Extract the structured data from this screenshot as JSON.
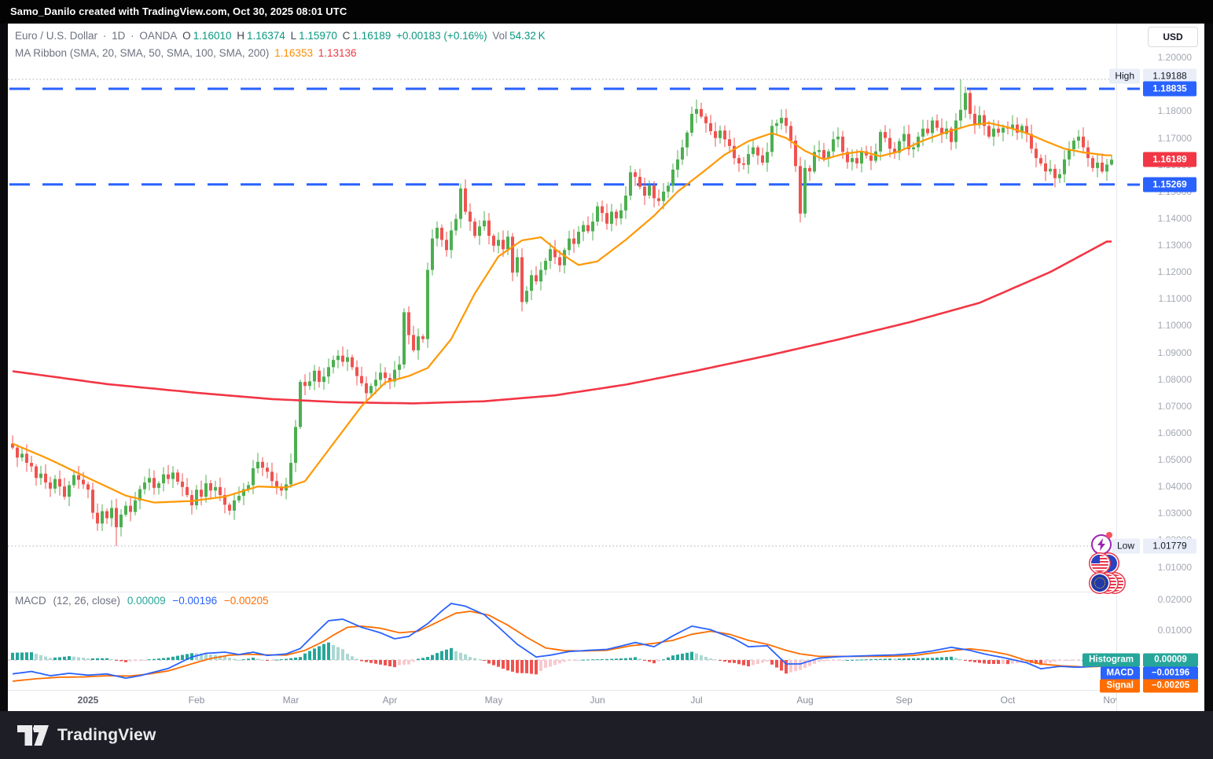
{
  "frame": {
    "top_bar_text": "Samo_Danilo created with TradingView.com, Oct 30, 2025 08:01 UTC",
    "footer_logo_text": "TradingView"
  },
  "header": {
    "symbol": "Euro / U.S. Dollar",
    "sep": "·",
    "interval": "1D",
    "exchange": "OANDA",
    "o_label": "O",
    "o_value": "1.16010",
    "h_label": "H",
    "h_value": "1.16374",
    "l_label": "L",
    "l_value": "1.15970",
    "c_label": "C",
    "c_value": "1.16189",
    "change": "+0.00183 (+0.16%)",
    "vol_label": "Vol",
    "vol_value": "54.32 K",
    "ma_ribbon_label": "MA Ribbon (SMA, 20, SMA, 50, SMA, 100, SMA, 200)",
    "sma20_value": "1.16353",
    "sma200_value": "1.13136"
  },
  "macd_header": {
    "label": "MACD",
    "params": "(12, 26, close)",
    "histogram_value": "0.00009",
    "macd_value": "−0.00196",
    "signal_value": "−0.00205"
  },
  "price_axis": {
    "currency_button": "USD",
    "ticks": [
      1.2,
      1.18,
      1.17,
      1.16,
      1.15,
      1.14,
      1.13,
      1.12,
      1.11,
      1.1,
      1.09,
      1.08,
      1.07,
      1.06,
      1.05,
      1.04,
      1.03,
      1.02,
      1.01
    ],
    "high_label": {
      "text": "High",
      "value": "1.19188",
      "price": 1.19188
    },
    "low_label": {
      "text": "Low",
      "value": "1.01779",
      "price": 1.01779
    },
    "upper_level": {
      "value": "1.18835",
      "price": 1.18835
    },
    "lower_level": {
      "value": "1.15269",
      "price": 1.15269
    },
    "last_price": {
      "value": "1.16189",
      "price": 1.16189
    }
  },
  "macd_axis": {
    "ticks": [
      {
        "label": "0.02000",
        "value": 0.02
      },
      {
        "label": "0.01000",
        "value": 0.01
      }
    ],
    "rows": [
      {
        "name": "Histogram",
        "value": "0.00009",
        "color": "#26A69A"
      },
      {
        "name": "MACD",
        "value": "−0.00196",
        "color": "#2962FF"
      },
      {
        "name": "Signal",
        "value": "−0.00205",
        "color": "#FF6D00"
      }
    ]
  },
  "time_axis": {
    "months": [
      {
        "label": "2025",
        "index": 16,
        "year": true
      },
      {
        "label": "Feb",
        "index": 39
      },
      {
        "label": "Mar",
        "index": 59
      },
      {
        "label": "Apr",
        "index": 80
      },
      {
        "label": "May",
        "index": 102
      },
      {
        "label": "Jun",
        "index": 124
      },
      {
        "label": "Jul",
        "index": 145
      },
      {
        "label": "Aug",
        "index": 168
      },
      {
        "label": "Sep",
        "index": 189
      },
      {
        "label": "Oct",
        "index": 211
      },
      {
        "label": "Nov",
        "index": 233
      }
    ]
  },
  "chart_data": {
    "type": "candlestick",
    "title": "Euro / U.S. Dollar, 1D, OANDA",
    "ylabel": "USD",
    "ylim": [
      1.005,
      1.208
    ],
    "grid": false,
    "range_high": 1.19188,
    "range_low": 1.01779,
    "horizontal_levels": [
      1.18835,
      1.15269
    ],
    "first_open": 1.056,
    "closes": [
      1.0545,
      1.0508,
      1.0522,
      1.0488,
      1.0475,
      1.0432,
      1.0448,
      1.0415,
      1.0392,
      1.0428,
      1.04,
      1.0362,
      1.0405,
      1.0442,
      1.0425,
      1.0408,
      1.0388,
      1.0302,
      1.0262,
      1.0308,
      1.0282,
      1.032,
      1.0248,
      1.0295,
      1.0328,
      1.0305,
      1.0348,
      1.039,
      1.0415,
      1.0432,
      1.0395,
      1.0412,
      1.0445,
      1.0428,
      1.0452,
      1.0418,
      1.0398,
      1.0368,
      1.033,
      1.0388,
      1.0362,
      1.0412,
      1.0385,
      1.0398,
      1.0368,
      1.0332,
      1.031,
      1.0348,
      1.0365,
      1.039,
      1.0405,
      1.0468,
      1.0492,
      1.047,
      1.0455,
      1.042,
      1.04,
      1.0385,
      1.0408,
      1.0488,
      1.0622,
      1.079,
      1.0775,
      1.0792,
      1.0832,
      1.079,
      1.081,
      1.0845,
      1.0872,
      1.0888,
      1.0865,
      1.0882,
      1.0845,
      1.0812,
      1.0785,
      1.0748,
      1.0775,
      1.0798,
      1.0825,
      1.0805,
      1.0792,
      1.0835,
      1.0855,
      1.105,
      1.0965,
      1.0908,
      1.096,
      1.095,
      1.1208,
      1.1325,
      1.1365,
      1.132,
      1.1282,
      1.1355,
      1.1398,
      1.1512,
      1.1425,
      1.1388,
      1.1335,
      1.137,
      1.1392,
      1.1335,
      1.1298,
      1.132,
      1.1285,
      1.1332,
      1.1198,
      1.1255,
      1.1088,
      1.113,
      1.1188,
      1.1165,
      1.1208,
      1.1242,
      1.1285,
      1.1255,
      1.1225,
      1.1282,
      1.1325,
      1.1305,
      1.135,
      1.1375,
      1.1352,
      1.1388,
      1.1445,
      1.142,
      1.138,
      1.1425,
      1.14,
      1.143,
      1.1485,
      1.1572,
      1.1555,
      1.1518,
      1.1485,
      1.1522,
      1.1475,
      1.1465,
      1.15,
      1.1522,
      1.1582,
      1.162,
      1.1665,
      1.172,
      1.179,
      1.1808,
      1.178,
      1.1755,
      1.1725,
      1.17,
      1.1728,
      1.1695,
      1.167,
      1.1625,
      1.1605,
      1.16,
      1.164,
      1.1665,
      1.1635,
      1.1608,
      1.1648,
      1.1745,
      1.1755,
      1.1775,
      1.1745,
      1.169,
      1.1595,
      1.1418,
      1.1588,
      1.1575,
      1.1648,
      1.1655,
      1.1625,
      1.165,
      1.1695,
      1.1705,
      1.1648,
      1.161,
      1.1625,
      1.1605,
      1.165,
      1.1635,
      1.1615,
      1.165,
      1.1722,
      1.17,
      1.166,
      1.1645,
      1.1688,
      1.1715,
      1.1658,
      1.1665,
      1.1705,
      1.1735,
      1.1718,
      1.1765,
      1.1738,
      1.1715,
      1.1735,
      1.1685,
      1.1765,
      1.1805,
      1.1868,
      1.179,
      1.1748,
      1.1785,
      1.1745,
      1.1705,
      1.1735,
      1.172,
      1.1738,
      1.1735,
      1.175,
      1.172,
      1.1745,
      1.1715,
      1.166,
      1.1625,
      1.1605,
      1.1575,
      1.1585,
      1.155,
      1.1565,
      1.162,
      1.1658,
      1.169,
      1.1705,
      1.1665,
      1.1625,
      1.1588,
      1.1608,
      1.1575,
      1.1601,
      1.16189
    ],
    "wick_overrides": {
      "22": {
        "low": 1.01779
      },
      "201": {
        "high": 1.19188
      }
    },
    "last_candle": {
      "open": 1.1601,
      "high": 1.16374,
      "low": 1.1597,
      "close": 1.16189
    },
    "sma20_points": [
      [
        0,
        1.056
      ],
      [
        8,
        1.05
      ],
      [
        16,
        1.0432
      ],
      [
        24,
        1.0366
      ],
      [
        30,
        1.034
      ],
      [
        38,
        1.0346
      ],
      [
        45,
        1.0362
      ],
      [
        52,
        1.04
      ],
      [
        58,
        1.0396
      ],
      [
        62,
        1.042
      ],
      [
        68,
        1.056
      ],
      [
        74,
        1.07
      ],
      [
        79,
        1.0788
      ],
      [
        84,
        1.0812
      ],
      [
        88,
        1.0842
      ],
      [
        93,
        1.095
      ],
      [
        98,
        1.112
      ],
      [
        103,
        1.1258
      ],
      [
        108,
        1.1318
      ],
      [
        112,
        1.133
      ],
      [
        116,
        1.1272
      ],
      [
        120,
        1.1226
      ],
      [
        124,
        1.124
      ],
      [
        130,
        1.132
      ],
      [
        136,
        1.141
      ],
      [
        141,
        1.15
      ],
      [
        146,
        1.1568
      ],
      [
        151,
        1.1638
      ],
      [
        156,
        1.1688
      ],
      [
        161,
        1.1718
      ],
      [
        164,
        1.17
      ],
      [
        168,
        1.1652
      ],
      [
        172,
        1.162
      ],
      [
        176,
        1.164
      ],
      [
        180,
        1.165
      ],
      [
        184,
        1.1632
      ],
      [
        188,
        1.165
      ],
      [
        193,
        1.169
      ],
      [
        198,
        1.1722
      ],
      [
        203,
        1.1748
      ],
      [
        207,
        1.1756
      ],
      [
        211,
        1.174
      ],
      [
        215,
        1.1718
      ],
      [
        219,
        1.1688
      ],
      [
        223,
        1.166
      ],
      [
        227,
        1.1646
      ],
      [
        232,
        1.16353
      ]
    ],
    "sma200_points": [
      [
        0,
        1.083
      ],
      [
        20,
        1.0782
      ],
      [
        40,
        1.0748
      ],
      [
        55,
        1.0726
      ],
      [
        70,
        1.0714
      ],
      [
        85,
        1.071
      ],
      [
        100,
        1.0718
      ],
      [
        115,
        1.074
      ],
      [
        130,
        1.078
      ],
      [
        145,
        1.0832
      ],
      [
        160,
        1.0888
      ],
      [
        175,
        1.0948
      ],
      [
        190,
        1.1012
      ],
      [
        205,
        1.1085
      ],
      [
        220,
        1.12
      ],
      [
        232,
        1.13136
      ]
    ],
    "macd_pane": {
      "type": "macd",
      "ylim": [
        -0.0099,
        0.0221
      ],
      "macd_points": [
        [
          0,
          -0.0046
        ],
        [
          4,
          -0.0038
        ],
        [
          8,
          -0.0052
        ],
        [
          12,
          -0.0044
        ],
        [
          16,
          -0.005
        ],
        [
          20,
          -0.0046
        ],
        [
          24,
          -0.006
        ],
        [
          27,
          -0.0052
        ],
        [
          30,
          -0.004
        ],
        [
          33,
          -0.0028
        ],
        [
          36,
          -0.0005
        ],
        [
          38,
          0.001
        ],
        [
          41,
          0.0022
        ],
        [
          45,
          0.0026
        ],
        [
          48,
          0.0018
        ],
        [
          51,
          0.0026
        ],
        [
          54,
          0.0015
        ],
        [
          58,
          0.002
        ],
        [
          61,
          0.0038
        ],
        [
          64,
          0.0085
        ],
        [
          67,
          0.013
        ],
        [
          70,
          0.0135
        ],
        [
          74,
          0.0108
        ],
        [
          78,
          0.009
        ],
        [
          81,
          0.007
        ],
        [
          84,
          0.0078
        ],
        [
          88,
          0.012
        ],
        [
          91,
          0.0162
        ],
        [
          93,
          0.0187
        ],
        [
          96,
          0.0178
        ],
        [
          100,
          0.015
        ],
        [
          103,
          0.0109
        ],
        [
          107,
          0.0052
        ],
        [
          111,
          0.001
        ],
        [
          114,
          0.0016
        ],
        [
          118,
          0.0028
        ],
        [
          122,
          0.0032
        ],
        [
          126,
          0.0035
        ],
        [
          130,
          0.005
        ],
        [
          132,
          0.0058
        ],
        [
          136,
          0.0044
        ],
        [
          140,
          0.008
        ],
        [
          144,
          0.0112
        ],
        [
          148,
          0.01
        ],
        [
          153,
          0.007
        ],
        [
          156,
          0.0044
        ],
        [
          160,
          0.0047
        ],
        [
          164,
          -0.0013
        ],
        [
          167,
          -0.0013
        ],
        [
          171,
          0.0006
        ],
        [
          175,
          0.0011
        ],
        [
          181,
          0.0014
        ],
        [
          187,
          0.0017
        ],
        [
          191,
          0.0021
        ],
        [
          195,
          0.003
        ],
        [
          199,
          0.0042
        ],
        [
          203,
          0.0032
        ],
        [
          206,
          0.002
        ],
        [
          210,
          0.0008
        ],
        [
          215,
          -0.0009
        ],
        [
          218,
          -0.0029
        ],
        [
          222,
          -0.0021
        ],
        [
          226,
          -0.0024
        ],
        [
          229,
          -0.0021
        ],
        [
          232,
          -0.00196
        ]
      ],
      "signal_points": [
        [
          0,
          -0.007
        ],
        [
          5,
          -0.0062
        ],
        [
          10,
          -0.0057
        ],
        [
          15,
          -0.0056
        ],
        [
          20,
          -0.0052
        ],
        [
          25,
          -0.0053
        ],
        [
          29,
          -0.0046
        ],
        [
          33,
          -0.0036
        ],
        [
          36,
          -0.0022
        ],
        [
          39,
          -0.0008
        ],
        [
          42,
          0.0005
        ],
        [
          46,
          0.0016
        ],
        [
          50,
          0.0019
        ],
        [
          54,
          0.0017
        ],
        [
          58,
          0.0016
        ],
        [
          62,
          0.0032
        ],
        [
          66,
          0.0062
        ],
        [
          68,
          0.0082
        ],
        [
          71,
          0.0108
        ],
        [
          74,
          0.0112
        ],
        [
          78,
          0.0105
        ],
        [
          82,
          0.009
        ],
        [
          86,
          0.0095
        ],
        [
          90,
          0.0125
        ],
        [
          94,
          0.0155
        ],
        [
          97,
          0.0161
        ],
        [
          101,
          0.0148
        ],
        [
          105,
          0.0115
        ],
        [
          109,
          0.0075
        ],
        [
          113,
          0.004
        ],
        [
          117,
          0.0031
        ],
        [
          121,
          0.003
        ],
        [
          126,
          0.0032
        ],
        [
          131,
          0.0047
        ],
        [
          136,
          0.0055
        ],
        [
          140,
          0.0065
        ],
        [
          144,
          0.0085
        ],
        [
          148,
          0.0095
        ],
        [
          152,
          0.0085
        ],
        [
          156,
          0.0065
        ],
        [
          160,
          0.0052
        ],
        [
          164,
          0.0032
        ],
        [
          167,
          0.002
        ],
        [
          171,
          0.0012
        ],
        [
          176,
          0.0012
        ],
        [
          181,
          0.0012
        ],
        [
          186,
          0.0012
        ],
        [
          191,
          0.0015
        ],
        [
          196,
          0.0025
        ],
        [
          200,
          0.0033
        ],
        [
          203,
          0.0037
        ],
        [
          207,
          0.003
        ],
        [
          211,
          0.0018
        ],
        [
          215,
          -0.0002
        ],
        [
          218,
          -0.0013
        ],
        [
          222,
          -0.0019
        ],
        [
          227,
          -0.0023
        ],
        [
          232,
          -0.00205
        ]
      ],
      "histogram": "derived: macd - signal"
    }
  },
  "colors": {
    "up": "#4CAF50",
    "down": "#EF5350",
    "sma20": "#FF9800",
    "sma200": "#F23645",
    "macd": "#2962FF",
    "signal": "#FF6D00",
    "hist_pos": "#26A69A",
    "hist_pos_weak": "#ACD7D2",
    "hist_neg": "#EF5350",
    "hist_neg_weak": "#F8C9CE",
    "level_blue": "#2962FF",
    "last_price_bg": "#F23645",
    "dotted_line": "#A7ABB6"
  },
  "icons": [
    {
      "name": "flash-event-icon"
    },
    {
      "name": "us-flag-icon"
    },
    {
      "name": "eu-flag-icon"
    }
  ]
}
